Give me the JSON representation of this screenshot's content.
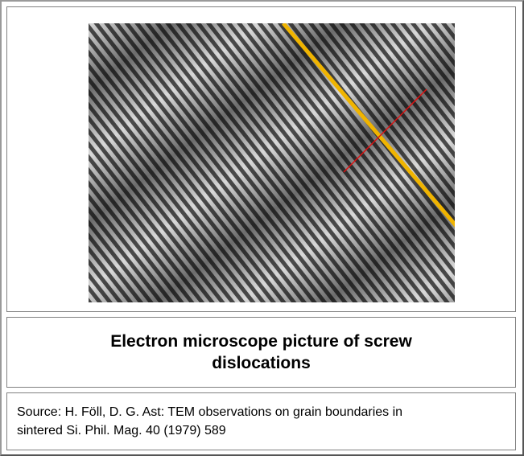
{
  "figure": {
    "caption": "Electron microscope picture of screw dislocations",
    "source": "Source: H. Föll, D. G. Ast: TEM observations on grain boundaries in sintered Si. Phil. Mag. 40 (1979) 589"
  }
}
